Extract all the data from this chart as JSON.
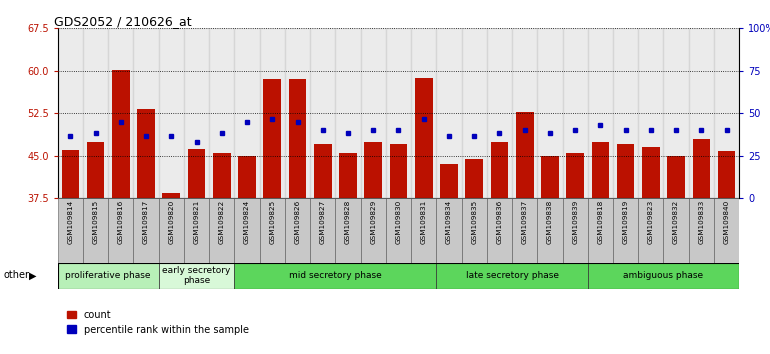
{
  "title": "GDS2052 / 210626_at",
  "samples": [
    "GSM109814",
    "GSM109815",
    "GSM109816",
    "GSM109817",
    "GSM109820",
    "GSM109821",
    "GSM109822",
    "GSM109824",
    "GSM109825",
    "GSM109826",
    "GSM109827",
    "GSM109828",
    "GSM109829",
    "GSM109830",
    "GSM109831",
    "GSM109834",
    "GSM109835",
    "GSM109836",
    "GSM109837",
    "GSM109838",
    "GSM109839",
    "GSM109818",
    "GSM109819",
    "GSM109823",
    "GSM109832",
    "GSM109833",
    "GSM109840"
  ],
  "red_values": [
    46.0,
    47.5,
    60.2,
    53.2,
    38.5,
    46.2,
    45.5,
    45.0,
    58.5,
    58.5,
    47.0,
    45.5,
    47.5,
    47.0,
    58.8,
    43.5,
    44.5,
    47.5,
    52.8,
    45.0,
    45.5,
    47.5,
    47.0,
    46.5,
    45.0,
    48.0,
    45.8
  ],
  "blue_values": [
    48.5,
    49.0,
    51.0,
    48.5,
    48.5,
    47.5,
    49.0,
    51.0,
    51.5,
    51.0,
    49.5,
    49.0,
    49.5,
    49.5,
    51.5,
    48.5,
    48.5,
    49.0,
    49.5,
    49.0,
    49.5,
    50.5,
    49.5,
    49.5,
    49.5,
    49.5,
    49.5
  ],
  "phases": [
    {
      "label": "proliferative phase",
      "start": 0,
      "end": 4,
      "color": "#b8f0b8"
    },
    {
      "label": "early secretory\nphase",
      "start": 4,
      "end": 7,
      "color": "#d8f8d8"
    },
    {
      "label": "mid secretory phase",
      "start": 7,
      "end": 15,
      "color": "#5cd65c"
    },
    {
      "label": "late secretory phase",
      "start": 15,
      "end": 21,
      "color": "#5cd65c"
    },
    {
      "label": "ambiguous phase",
      "start": 21,
      "end": 27,
      "color": "#5cd65c"
    }
  ],
  "ylim_min": 37.5,
  "ylim_max": 67.5,
  "yticks_left": [
    37.5,
    45.0,
    52.5,
    60.0,
    67.5
  ],
  "yticks_right": [
    0,
    25,
    50,
    75,
    100
  ],
  "red_color": "#bb1100",
  "blue_color": "#0000bb",
  "legend_count": "count",
  "legend_pct": "percentile rank within the sample",
  "col_bg_color": "#c8c8c8",
  "plot_bg": "#ffffff"
}
